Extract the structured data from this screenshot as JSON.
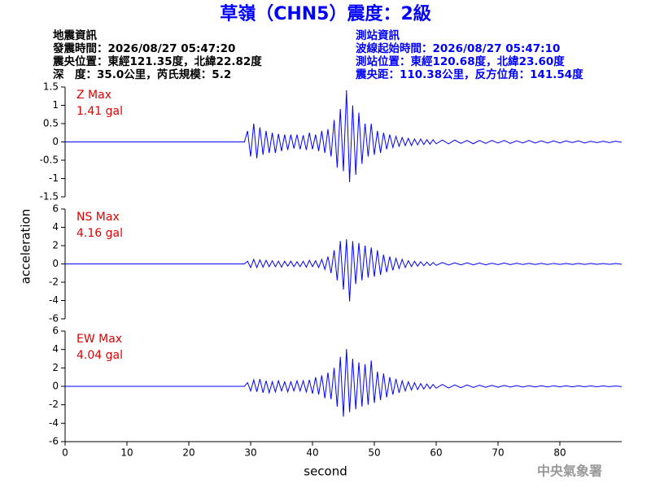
{
  "header": {
    "title": "草嶺（CHN5）震度：2級",
    "left": [
      "地震資訊",
      "發震時間：2026/08/27 05:47:20",
      "震央位置：東經121.35度，北緯22.82度",
      "深　度：35.0公里，芮氏規模：5.2"
    ],
    "right": [
      "測站資訊",
      "波線起始時間：2026/08/27 05:47:10",
      "測站位置：東經120.68度，北緯23.60度",
      "震央距：110.38公里，反方位角：141.54度"
    ]
  },
  "footer": {
    "credit": "中央氣象署"
  },
  "chart_data": {
    "type": "line",
    "xlabel": "second",
    "ylabel": "acceleration",
    "color": "#0000ff",
    "xlim": [
      0,
      90
    ],
    "xticks": [
      0,
      10,
      20,
      30,
      40,
      50,
      60,
      70,
      80
    ],
    "x": [
      0,
      29,
      29.5,
      30,
      30.5,
      31,
      31.5,
      32,
      32.5,
      33,
      33.5,
      34,
      34.5,
      35,
      35.5,
      36,
      36.5,
      37,
      37.5,
      38,
      38.5,
      39,
      39.5,
      40,
      40.5,
      41,
      41.5,
      42,
      42.5,
      43,
      43.5,
      44,
      44.5,
      45,
      45.5,
      46,
      46.5,
      47,
      47.5,
      48,
      48.5,
      49,
      49.5,
      50,
      50.5,
      51,
      51.5,
      52,
      52.5,
      53,
      53.5,
      54,
      54.5,
      55,
      55.5,
      56,
      56.5,
      57,
      57.5,
      58,
      58.5,
      59,
      59.5,
      60,
      61,
      62,
      63,
      64,
      65,
      66,
      67,
      68,
      69,
      70,
      71,
      72,
      73,
      74,
      75,
      76,
      77,
      78,
      79,
      80,
      81,
      82,
      83,
      84,
      85,
      86,
      87,
      88,
      89,
      90
    ],
    "series": [
      {
        "name": "Z Max",
        "peak_label": "1.41 gal",
        "ylim": [
          -1.5,
          1.5
        ],
        "yticks": [
          -1.5,
          -1,
          -0.5,
          0,
          0.5,
          1,
          1.5
        ],
        "values": [
          0,
          0,
          0.3,
          -0.4,
          0.5,
          -0.45,
          0.4,
          -0.35,
          0.3,
          -0.3,
          0.25,
          -0.3,
          0.22,
          -0.25,
          0.2,
          -0.22,
          0.2,
          -0.18,
          0.2,
          -0.2,
          0.18,
          -0.22,
          0.25,
          -0.2,
          0.2,
          -0.25,
          0.3,
          -0.3,
          0.35,
          -0.4,
          0.6,
          -0.7,
          0.9,
          -0.8,
          1.41,
          -1.1,
          1.0,
          -0.9,
          0.8,
          -0.6,
          0.5,
          -0.4,
          0.5,
          -0.35,
          0.3,
          -0.3,
          0.25,
          -0.2,
          0.2,
          -0.15,
          0.15,
          -0.12,
          0.12,
          -0.1,
          0.1,
          -0.1,
          0.08,
          -0.08,
          0.08,
          -0.07,
          0.06,
          -0.06,
          0.06,
          -0.05,
          0.05,
          -0.05,
          0.05,
          -0.04,
          0.04,
          -0.05,
          0.04,
          -0.04,
          0.04,
          -0.03,
          0.04,
          -0.04,
          0.03,
          -0.03,
          0.04,
          -0.03,
          0.03,
          -0.03,
          0.03,
          -0.03,
          0.03,
          -0.02,
          0.03,
          -0.03,
          0.02,
          -0.02,
          0.02,
          -0.02,
          0.02,
          -0.01
        ]
      },
      {
        "name": "NS Max",
        "peak_label": "4.16 gal",
        "ylim": [
          -6,
          6
        ],
        "yticks": [
          -6,
          -4,
          -2,
          0,
          2,
          4,
          6
        ],
        "values": [
          0,
          0,
          0.3,
          -0.4,
          0.5,
          -0.4,
          0.45,
          -0.35,
          0.4,
          -0.3,
          0.35,
          -0.3,
          0.3,
          -0.35,
          0.3,
          -0.25,
          0.3,
          -0.3,
          0.25,
          -0.3,
          0.3,
          -0.35,
          0.4,
          -0.3,
          0.35,
          -0.4,
          0.5,
          -0.6,
          0.8,
          -1.0,
          1.5,
          -1.8,
          2.5,
          -2.8,
          2.7,
          -4.1,
          2.5,
          -2.2,
          2.3,
          -1.8,
          2.0,
          -1.5,
          1.8,
          -1.4,
          1.5,
          -1.2,
          1.0,
          -0.9,
          0.8,
          -0.7,
          0.6,
          -0.5,
          0.5,
          -0.4,
          0.35,
          -0.3,
          0.3,
          -0.25,
          0.25,
          -0.2,
          0.2,
          -0.18,
          0.15,
          -0.15,
          0.15,
          -0.12,
          0.12,
          -0.1,
          0.12,
          -0.1,
          0.1,
          -0.1,
          0.08,
          -0.08,
          0.1,
          -0.08,
          0.08,
          -0.07,
          0.07,
          -0.07,
          0.06,
          -0.06,
          0.06,
          -0.05,
          0.06,
          -0.05,
          0.05,
          -0.05,
          0.05,
          -0.04,
          0.04,
          -0.04,
          0.04,
          -0.03
        ]
      },
      {
        "name": "EW Max",
        "peak_label": "4.04 gal",
        "ylim": [
          -6,
          6
        ],
        "yticks": [
          -6,
          -4,
          -2,
          0,
          2,
          4,
          6
        ],
        "values": [
          0,
          0,
          0.4,
          -0.5,
          0.7,
          -0.6,
          0.8,
          -0.7,
          0.6,
          -0.7,
          0.5,
          -0.6,
          0.6,
          -0.5,
          0.5,
          -0.6,
          0.5,
          -0.5,
          0.6,
          -0.5,
          0.6,
          -0.6,
          0.7,
          -0.8,
          1.0,
          -0.9,
          1.2,
          -1.3,
          1.5,
          -1.4,
          2.0,
          -2.2,
          3.2,
          -3.3,
          4.04,
          -2.8,
          3.0,
          -2.5,
          2.6,
          -2.2,
          2.4,
          -2.0,
          2.8,
          -1.8,
          1.6,
          -1.5,
          1.4,
          -1.2,
          1.0,
          -0.9,
          0.8,
          -0.7,
          0.6,
          -0.5,
          0.5,
          -0.4,
          0.4,
          -0.35,
          0.3,
          -0.3,
          0.25,
          -0.25,
          0.2,
          -0.2,
          0.2,
          -0.18,
          0.15,
          -0.15,
          0.15,
          -0.12,
          0.12,
          -0.1,
          0.1,
          -0.1,
          0.1,
          -0.08,
          0.08,
          -0.08,
          0.07,
          -0.07,
          0.06,
          -0.06,
          0.06,
          -0.05,
          0.05,
          -0.05,
          0.05,
          -0.04,
          0.04,
          -0.04,
          0.04,
          -0.03,
          0.03,
          -0.03
        ]
      }
    ]
  }
}
